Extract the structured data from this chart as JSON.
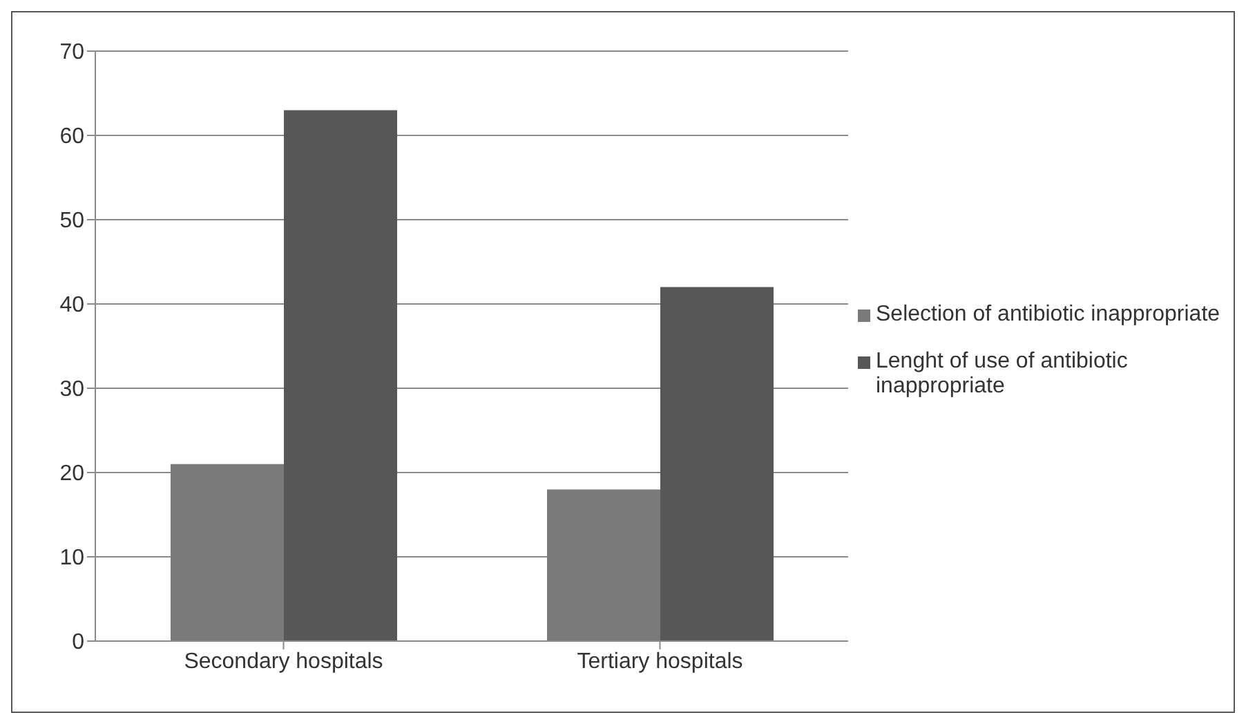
{
  "chart_data": {
    "type": "bar",
    "categories": [
      "Secondary hospitals",
      "Tertiary hospitals"
    ],
    "series": [
      {
        "name": "Selection of antibiotic inappropriate",
        "color": "#7a7a7a",
        "values": [
          21,
          18
        ]
      },
      {
        "name": "Lenght of use of antibiotic inappropriate",
        "color": "#575757",
        "values": [
          63,
          42
        ]
      }
    ],
    "ylim": [
      0,
      70
    ],
    "yticks": [
      0,
      10,
      20,
      30,
      40,
      50,
      60,
      70
    ],
    "grid": "y",
    "legend": "right"
  }
}
